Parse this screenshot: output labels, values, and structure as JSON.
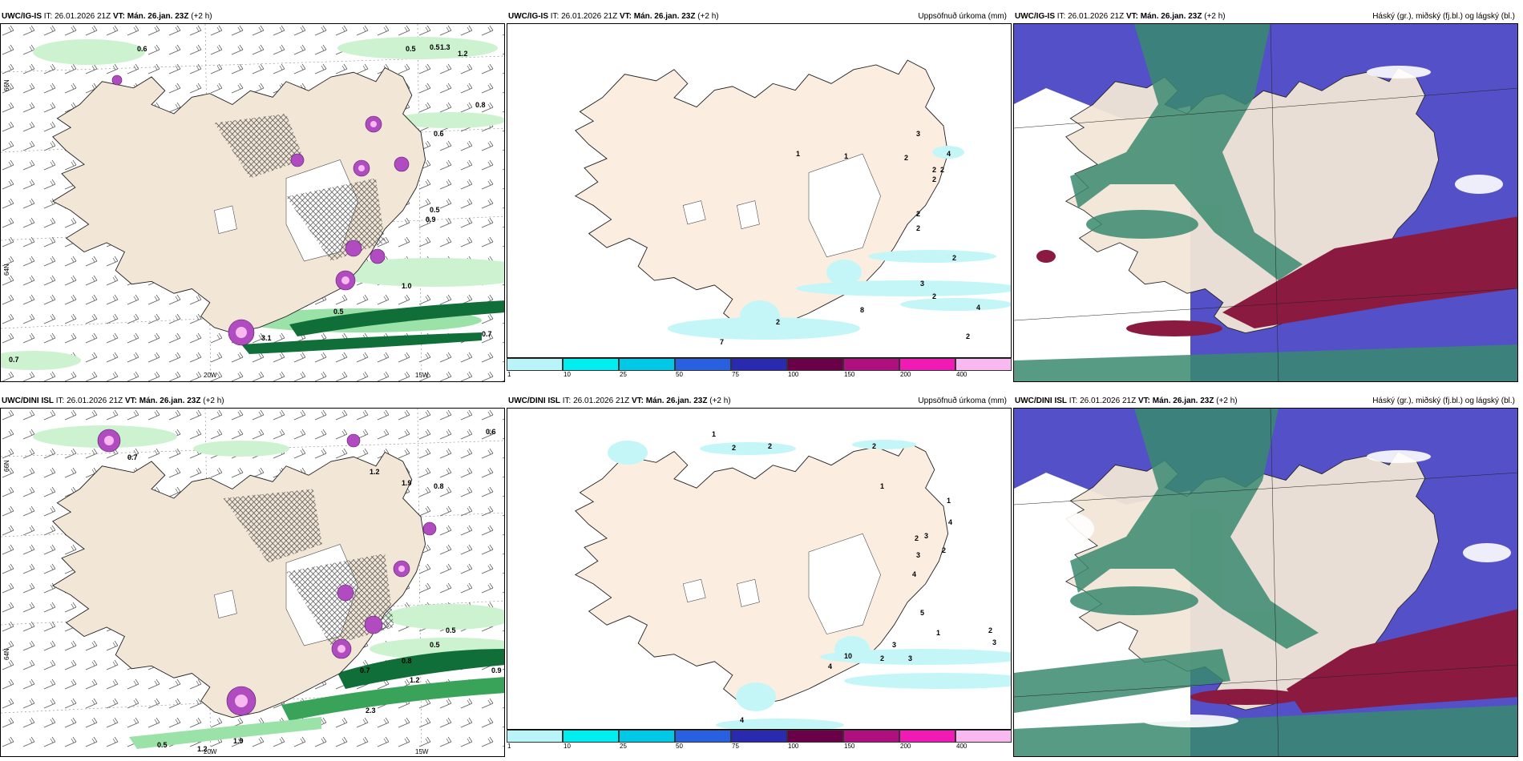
{
  "panels": [
    {
      "id": "top-left",
      "model": "UWC/IG-IS",
      "it_label": "IT:",
      "it": "26.01.2026 21Z",
      "vt_label": "VT:",
      "vt": "Mán. 26.jan. 23Z",
      "lead": "(+2 h)",
      "right_title": "",
      "lat_labels": [
        "66N",
        "64N"
      ],
      "lon_labels": [
        "20W",
        "15W"
      ],
      "labels": [
        "0.6",
        "0.5",
        "0.5",
        "1.3",
        "1.2",
        "0.8",
        "0.6",
        "0.9",
        "1.0",
        "0.7",
        "0.5",
        "0.7",
        "3.1",
        "0.5"
      ]
    },
    {
      "id": "top-middle",
      "model": "UWC/IG-IS",
      "it_label": "IT:",
      "it": "26.01.2026 21Z",
      "vt_label": "VT:",
      "vt": "Mán. 26.jan. 23Z",
      "lead": "(+2 h)",
      "right_title": "Uppsöfnuð úrkoma (mm)",
      "labels": [
        "1",
        "1",
        "3",
        "2",
        "4",
        "2",
        "2",
        "2",
        "2",
        "2",
        "2",
        "3",
        "2",
        "4",
        "8",
        "2",
        "7",
        "2"
      ]
    },
    {
      "id": "top-right",
      "model": "UWC/IG-IS",
      "it_label": "IT:",
      "it": "26.01.2026 21Z",
      "vt_label": "VT:",
      "vt": "Mán. 26.jan. 23Z",
      "lead": "(+2 h)",
      "right_title": "Háský (gr.), miðský (fj.bl.) og lágský (bl.)"
    },
    {
      "id": "bottom-left",
      "model": "UWC/DINI ISL",
      "it_label": "IT:",
      "it": "26.01.2026 21Z",
      "vt_label": "VT:",
      "vt": "Mán. 26.jan. 23Z",
      "lead": "(+2 h)",
      "right_title": "",
      "lat_labels": [
        "66N",
        "64N"
      ],
      "lon_labels": [
        "20W",
        "15W"
      ],
      "labels": [
        "0.6",
        "0.7",
        "1.2",
        "1.9",
        "0.8",
        "0.5",
        "0.5",
        "0.8",
        "0.7",
        "0.9",
        "1.2",
        "2.3",
        "0.5",
        "1.2",
        "1.9"
      ]
    },
    {
      "id": "bottom-middle",
      "model": "UWC/DINI ISL",
      "it_label": "IT:",
      "it": "26.01.2026 21Z",
      "vt_label": "VT:",
      "vt": "Mán. 26.jan. 23Z",
      "lead": "(+2 h)",
      "right_title": "Uppsöfnuð úrkoma (mm)",
      "labels": [
        "1",
        "2",
        "2",
        "2",
        "1",
        "1",
        "4",
        "2",
        "3",
        "2",
        "3",
        "4",
        "5",
        "2",
        "1",
        "3",
        "10",
        "2",
        "3",
        "3",
        "4",
        "4"
      ]
    },
    {
      "id": "bottom-right",
      "model": "UWC/DINI ISL",
      "it_label": "IT:",
      "it": "26.01.2026 21Z",
      "vt_label": "VT:",
      "vt": "Mán. 26.jan. 23Z",
      "lead": "(+2 h)",
      "right_title": "Háský (gr.), miðský (fj.bl.) og lágský (bl.)"
    }
  ],
  "precip_legend": {
    "values": [
      "1",
      "10",
      "25",
      "50",
      "75",
      "100",
      "150",
      "200",
      "400"
    ],
    "colors": [
      "#b8f4f8",
      "#00eef0",
      "#00c8e6",
      "#2860e0",
      "#2a2ab0",
      "#6a0048",
      "#b0107e",
      "#f01ab4",
      "#f8b8f0"
    ]
  },
  "colors": {
    "land": "#f2e6d6",
    "coast": "#222222",
    "precip_light": "#c4f6f8",
    "rain_green_light": "#ccf2d0",
    "rain_green_dark": "#106e38",
    "snow_purple": "#b04cc0",
    "high_cloud": "#3a8a70",
    "mid_cloud": "#5450c8",
    "low_cloud": "#8a1a40"
  }
}
